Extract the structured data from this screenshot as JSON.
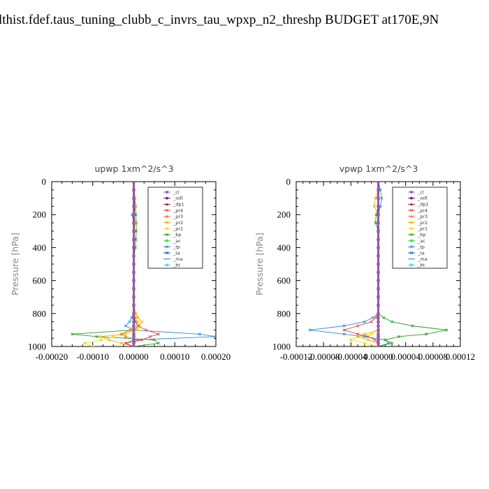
{
  "page": {
    "title": "lthist.fdef.taus_tuning_clubb_c_invrs_tau_wpxp_n2_threshp  BUDGET at170E,9N"
  },
  "chart_data": [
    {
      "type": "line",
      "title": "upwp   1xm^2/s^3",
      "ylabel": "Pressure [hPa]",
      "ylim": [
        0,
        1000
      ],
      "y_inverted": true,
      "xlim": [
        -0.0002,
        0.0002
      ],
      "xticks": [
        "-0.00020",
        "-0.00010",
        "0.00000",
        "0.00010",
        "0.00020"
      ],
      "yticks": [
        "0",
        "200",
        "400",
        "600",
        "800",
        "1000"
      ],
      "legend_position": "top-right",
      "pressure": [
        0,
        50,
        100,
        150,
        200,
        250,
        300,
        350,
        400,
        450,
        500,
        550,
        600,
        650,
        700,
        750,
        800,
        825,
        850,
        875,
        900,
        925,
        940,
        960,
        980,
        1000
      ],
      "series": [
        {
          "name": "_cl",
          "color": "#9b59c4",
          "values": [
            0,
            0,
            0,
            0,
            0,
            0,
            0,
            0,
            0,
            0,
            0,
            0,
            0,
            0,
            0,
            0,
            0,
            0,
            0,
            0,
            0,
            0,
            0,
            0,
            0,
            0
          ]
        },
        {
          "name": "_mfl",
          "color": "#6b0f6b",
          "values": [
            0,
            0,
            0,
            0,
            0,
            0,
            0,
            0,
            0,
            0,
            0,
            0,
            0,
            0,
            0,
            0,
            0,
            0,
            0,
            0,
            0,
            0,
            0,
            0,
            0,
            0
          ]
        },
        {
          "name": "_dp1",
          "color": "#a0204a",
          "values": [
            0,
            0,
            0,
            0,
            0,
            0,
            0,
            0,
            0,
            0,
            0,
            0,
            0,
            0,
            0,
            0,
            0,
            0,
            0,
            0,
            0,
            0,
            0,
            0,
            0,
            0
          ]
        },
        {
          "name": "_pr4",
          "color": "#e04848",
          "values": [
            0,
            0,
            0,
            0,
            0,
            0,
            0,
            0,
            0,
            0,
            0,
            0,
            0,
            0,
            0,
            0,
            0,
            2e-06,
            4e-06,
            1e-05,
            3e-05,
            6e-05,
            4e-05,
            2e-05,
            -2e-05,
            0
          ]
        },
        {
          "name": "_pr3",
          "color": "#f07050",
          "values": [
            0,
            0,
            0,
            0,
            0,
            0,
            0,
            0,
            0,
            0,
            0,
            0,
            0,
            0,
            0,
            0,
            0,
            0,
            0,
            0,
            -1e-05,
            -3e-05,
            -2e-05,
            1e-05,
            0,
            0
          ]
        },
        {
          "name": "_pr2",
          "color": "#f0b000",
          "values": [
            0,
            0,
            3e-06,
            5e-06,
            0,
            4e-06,
            0,
            0,
            0,
            0,
            0,
            0,
            0,
            0,
            0,
            0,
            5e-06,
            1e-05,
            2e-05,
            1e-05,
            5e-06,
            -3e-05,
            -8e-05,
            -6e-05,
            -3e-05,
            0
          ]
        },
        {
          "name": "_pr1",
          "color": "#f0e020",
          "values": [
            0,
            0,
            0,
            0,
            0,
            0,
            0,
            0,
            0,
            0,
            0,
            0,
            0,
            0,
            0,
            0,
            2e-06,
            5e-06,
            1e-05,
            1.5e-05,
            1e-05,
            -2e-05,
            -5e-05,
            -8e-05,
            -0.00012,
            -0.0001
          ]
        },
        {
          "name": "_bp",
          "color": "#22a022",
          "values": [
            0,
            0,
            3e-06,
            4e-06,
            5e-06,
            6e-06,
            6e-06,
            5e-06,
            4e-06,
            0,
            0,
            0,
            0,
            0,
            0,
            0,
            0,
            0,
            5e-06,
            1e-05,
            0,
            -0.00015,
            -9e-05,
            5e-05,
            6e-05,
            0
          ]
        },
        {
          "name": "_ac",
          "color": "#40e040",
          "values": [
            0,
            0,
            0,
            0,
            0,
            0,
            0,
            0,
            0,
            0,
            0,
            0,
            0,
            0,
            0,
            0,
            0,
            0,
            0,
            0,
            0,
            0,
            0,
            0,
            0,
            0
          ]
        },
        {
          "name": "_tp",
          "color": "#2a8fcf",
          "values": [
            0,
            0,
            0,
            5e-06,
            -4e-06,
            0,
            0,
            0,
            0,
            0,
            0,
            0,
            0,
            0,
            0,
            0,
            0,
            -5e-06,
            -1e-05,
            -2e-05,
            0,
            0.00016,
            0.0002,
            0,
            -2e-05,
            0
          ]
        },
        {
          "name": "_ta",
          "color": "#1060c0",
          "values": [
            0,
            0,
            0,
            0,
            0,
            0,
            0,
            0,
            0,
            0,
            0,
            0,
            0,
            0,
            0,
            0,
            0,
            0,
            0,
            0,
            0,
            0,
            0,
            0,
            0,
            0
          ]
        },
        {
          "name": "_ma",
          "color": "#5c7ad0",
          "values": [
            0,
            0,
            0,
            0,
            0,
            0,
            0,
            0,
            0,
            0,
            0,
            0,
            0,
            0,
            0,
            0,
            0,
            0,
            0,
            0,
            0,
            0,
            0,
            0,
            0,
            0
          ]
        },
        {
          "name": "_bt",
          "color": "#40e0e0",
          "values": [
            0,
            0,
            0,
            0,
            0,
            0,
            0,
            0,
            0,
            0,
            0,
            0,
            0,
            0,
            0,
            0,
            0,
            0,
            0,
            0,
            0,
            0,
            0,
            0,
            0,
            0
          ]
        }
      ]
    },
    {
      "type": "line",
      "title": "vpwp   1xm^2/s^3",
      "ylabel": "Pressure [hPa]",
      "ylim": [
        0,
        1000
      ],
      "y_inverted": true,
      "xlim": [
        -0.00012,
        0.00012
      ],
      "xticks": [
        "-0.00012",
        "-0.00008",
        "-0.00004",
        "0.00000",
        "0.00004",
        "0.00008",
        "0.00012"
      ],
      "yticks": [
        "0",
        "200",
        "400",
        "600",
        "800",
        "1000"
      ],
      "legend_position": "top-right",
      "pressure": [
        0,
        50,
        100,
        150,
        200,
        250,
        300,
        350,
        400,
        450,
        500,
        550,
        600,
        650,
        700,
        750,
        800,
        825,
        850,
        875,
        900,
        925,
        940,
        960,
        980,
        1000
      ],
      "series": [
        {
          "name": "_cl",
          "color": "#9b59c4",
          "values": [
            0,
            0,
            0,
            0,
            0,
            0,
            0,
            0,
            0,
            0,
            0,
            0,
            0,
            0,
            0,
            0,
            0,
            0,
            0,
            0,
            0,
            0,
            0,
            0,
            0,
            0
          ]
        },
        {
          "name": "_mfl",
          "color": "#6b0f6b",
          "values": [
            0,
            0,
            0,
            0,
            0,
            0,
            0,
            0,
            0,
            0,
            0,
            0,
            0,
            0,
            0,
            0,
            0,
            0,
            0,
            0,
            0,
            0,
            0,
            0,
            0,
            0
          ]
        },
        {
          "name": "_dp1",
          "color": "#a0204a",
          "values": [
            0,
            0,
            0,
            0,
            0,
            0,
            0,
            0,
            0,
            0,
            0,
            0,
            0,
            0,
            0,
            0,
            0,
            0,
            0,
            0,
            0,
            0,
            0,
            0,
            0,
            0
          ]
        },
        {
          "name": "_pr4",
          "color": "#e04848",
          "values": [
            0,
            0,
            0,
            0,
            0,
            0,
            0,
            0,
            0,
            0,
            0,
            0,
            0,
            0,
            0,
            0,
            0,
            -4e-06,
            -1e-05,
            -3e-05,
            -5e-05,
            -3e-05,
            -1.5e-05,
            -5e-06,
            0,
            0
          ]
        },
        {
          "name": "_pr3",
          "color": "#f07050",
          "values": [
            0,
            0,
            0,
            0,
            0,
            0,
            0,
            0,
            0,
            0,
            0,
            0,
            0,
            0,
            0,
            0,
            0,
            0,
            0,
            0,
            0,
            0,
            0,
            0,
            0,
            0
          ]
        },
        {
          "name": "_pr2",
          "color": "#f0b000",
          "values": [
            0,
            0,
            -4e-06,
            -6e-06,
            0,
            0,
            0,
            0,
            0,
            0,
            0,
            0,
            0,
            0,
            0,
            0,
            0,
            0,
            0,
            0,
            0,
            -2e-05,
            -3e-05,
            -1.5e-05,
            0,
            0
          ]
        },
        {
          "name": "_pr1",
          "color": "#f0e020",
          "values": [
            0,
            0,
            0,
            0,
            0,
            0,
            0,
            0,
            0,
            0,
            0,
            0,
            0,
            0,
            0,
            0,
            0,
            0,
            0,
            0,
            0,
            -1e-05,
            -3e-05,
            -4e-05,
            -2e-05,
            0
          ]
        },
        {
          "name": "_bp",
          "color": "#22a022",
          "values": [
            0,
            0,
            0,
            0,
            -3e-06,
            -4e-06,
            0,
            0,
            0,
            0,
            0,
            0,
            0,
            0,
            0,
            0,
            0,
            8e-06,
            2e-05,
            5e-05,
            0.0001,
            7e-05,
            3e-05,
            1e-05,
            2e-05,
            0
          ]
        },
        {
          "name": "_ac",
          "color": "#40e040",
          "values": [
            0,
            0,
            0,
            0,
            0,
            0,
            0,
            0,
            0,
            0,
            0,
            0,
            0,
            0,
            0,
            0,
            0,
            0,
            0,
            0,
            0,
            0,
            0,
            0,
            0,
            0
          ]
        },
        {
          "name": "_tp",
          "color": "#2a8fcf",
          "values": [
            0,
            3e-06,
            5e-06,
            3e-06,
            0,
            0,
            0,
            0,
            0,
            0,
            0,
            0,
            0,
            0,
            0,
            0,
            0,
            -8e-06,
            -2e-05,
            -5e-05,
            -0.0001,
            -5e-05,
            -2e-05,
            1e-05,
            1.5e-05,
            0
          ]
        },
        {
          "name": "_ta",
          "color": "#1060c0",
          "values": [
            0,
            0,
            0,
            0,
            0,
            0,
            0,
            0,
            0,
            0,
            0,
            0,
            0,
            0,
            0,
            0,
            0,
            0,
            0,
            0,
            0,
            0,
            0,
            0,
            0,
            0
          ]
        },
        {
          "name": "_ma",
          "color": "#5c7ad0",
          "values": [
            0,
            0,
            0,
            0,
            0,
            0,
            0,
            0,
            0,
            0,
            0,
            0,
            0,
            0,
            0,
            0,
            0,
            0,
            0,
            0,
            0,
            0,
            0,
            0,
            0,
            0
          ]
        },
        {
          "name": "_bt",
          "color": "#40e0e0",
          "values": [
            0,
            0,
            0,
            0,
            0,
            0,
            0,
            0,
            0,
            0,
            0,
            0,
            0,
            0,
            0,
            0,
            0,
            0,
            0,
            0,
            0,
            0,
            0,
            0,
            0,
            0
          ]
        }
      ]
    }
  ]
}
